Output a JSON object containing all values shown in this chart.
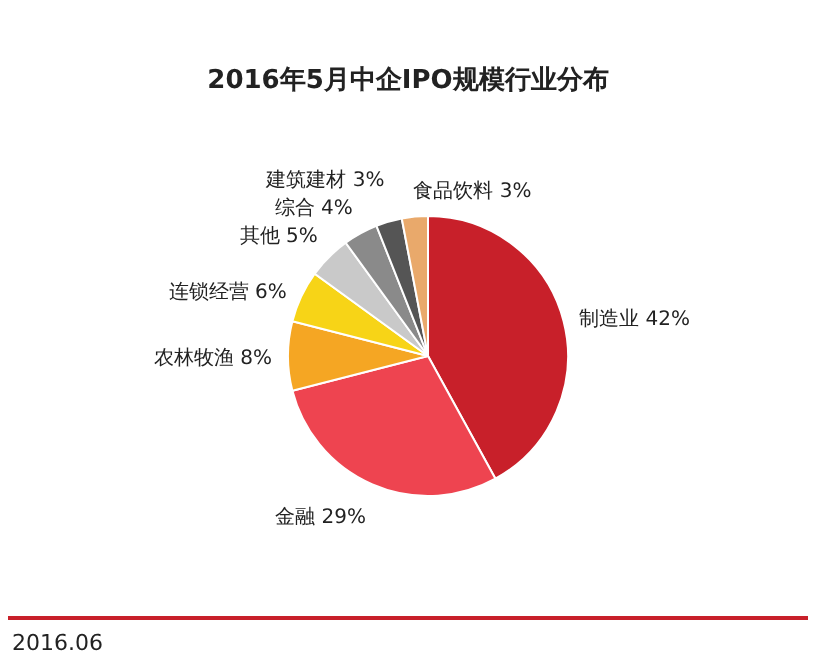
{
  "chart_data": {
    "type": "pie",
    "title": "2016年5月中企IPO规模行业分布",
    "categories": [
      "制造业",
      "金融",
      "农林牧渔",
      "连锁经营",
      "其他",
      "综合",
      "建筑建材",
      "食品饮料"
    ],
    "values": [
      42,
      29,
      8,
      6,
      5,
      4,
      3,
      3
    ],
    "colors": [
      "#c8202a",
      "#ee4450",
      "#f5a623",
      "#f7d417",
      "#c9c9c9",
      "#8a8a8a",
      "#555555",
      "#e9a96b"
    ],
    "value_labels": [
      "42%",
      "29%",
      "8%",
      "6%",
      "5%",
      "4%",
      "3%",
      "3%"
    ],
    "annotations": [
      "2016.06"
    ]
  }
}
